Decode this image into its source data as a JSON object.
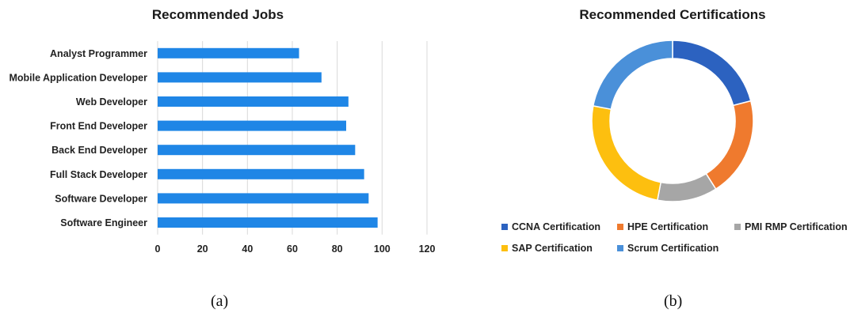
{
  "chart_data": [
    {
      "type": "bar",
      "orientation": "horizontal",
      "title": "Recommended Jobs",
      "categories": [
        "Analyst Programmer",
        "Mobile Application Developer",
        "Web Developer",
        "Front End Developer",
        "Back End Developer",
        "Full Stack Developer",
        "Software Developer",
        "Software Engineer"
      ],
      "values": [
        63,
        73,
        85,
        84,
        88,
        92,
        94,
        98
      ],
      "xlim": [
        0,
        120
      ],
      "xticks": [
        "0",
        "20",
        "40",
        "60",
        "80",
        "100",
        "120"
      ],
      "grid": "vertical",
      "bar_color": "#1f86e6",
      "panel_label": "(a)"
    },
    {
      "type": "pie",
      "style": "donut",
      "title": "Recommended Certifications",
      "slices": [
        {
          "label": "CCNA Certification",
          "value": 21,
          "color": "#2c62c0"
        },
        {
          "label": "HPE Certification",
          "value": 20,
          "color": "#ef7a2e"
        },
        {
          "label": "PMI RMP Certification",
          "value": 12,
          "color": "#a6a6a6"
        },
        {
          "label": "SAP Certification",
          "value": 25,
          "color": "#fdbf0f"
        },
        {
          "label": "Scrum Certification",
          "value": 22,
          "color": "#4a90d9"
        }
      ],
      "legend_position": "bottom",
      "panel_label": "(b)"
    }
  ]
}
